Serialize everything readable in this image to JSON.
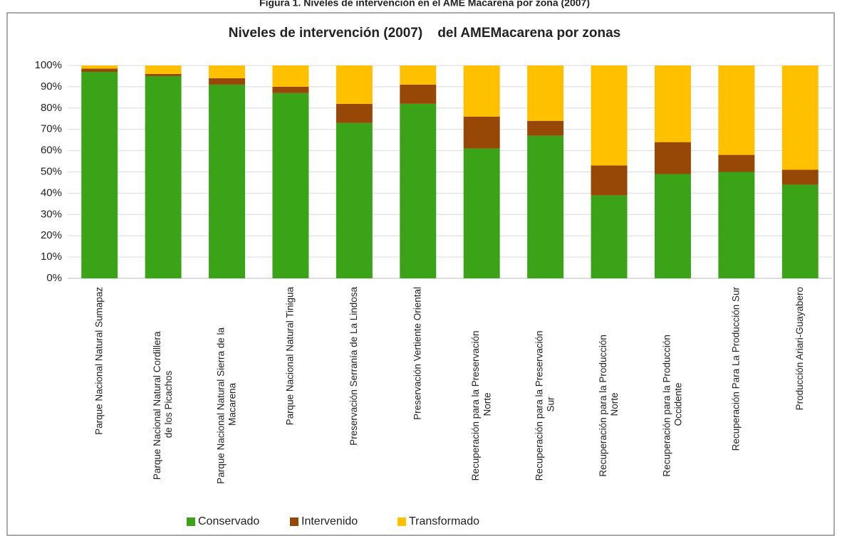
{
  "chart_data": {
    "type": "stacked_bar",
    "caption": "Figura 1. Niveles de intervención en el AME Macarena por zona (2007)",
    "title": "Niveles de intervención (2007)    del AMEMacarena por zonas",
    "categories": [
      "Parque Nacional Natural Sumapaz",
      "Parque Nacional Natural Cordillera de los Picachos",
      "Parque Nacional Natural Sierra de la Macarena",
      "Parque Nacional Natural Tinigua",
      "Preservación Serranía de La Lindosa",
      "Preservación Vertiente Oriental",
      "Recuperación para la Preservación Norte",
      "Recuperación para la Preservación Sur",
      "Recuperación para la Producción Norte",
      "Recuperación para la Producción Occidente",
      "Recuperación Para La Producción Sur",
      "Producción Ariari-Guayabero"
    ],
    "series": [
      {
        "name": "Conservado",
        "color": "#3aa317",
        "values": [
          97,
          95,
          91,
          87,
          73,
          82,
          61,
          67,
          39,
          49,
          50,
          44
        ]
      },
      {
        "name": "Intervenido",
        "color": "#974706",
        "values": [
          1.5,
          1,
          3,
          3,
          9,
          9,
          15,
          7,
          14,
          15,
          8,
          7
        ]
      },
      {
        "name": "Transformado",
        "color": "#ffc000",
        "values": [
          1.5,
          4,
          6,
          10,
          18,
          9,
          24,
          26,
          47,
          36,
          42,
          49
        ]
      }
    ],
    "ylim": [
      0,
      100
    ],
    "yticks": [
      {
        "value": 0,
        "label": "0%"
      },
      {
        "value": 10,
        "label": "10%"
      },
      {
        "value": 20,
        "label": "20%"
      },
      {
        "value": 30,
        "label": "30%"
      },
      {
        "value": 40,
        "label": "40%"
      },
      {
        "value": 50,
        "label": "50%"
      },
      {
        "value": 60,
        "label": "60%"
      },
      {
        "value": 70,
        "label": "70%"
      },
      {
        "value": 80,
        "label": "80%"
      },
      {
        "value": 90,
        "label": "90%"
      },
      {
        "value": 100,
        "label": "100%"
      }
    ],
    "grid": true,
    "legend": "bottom"
  }
}
